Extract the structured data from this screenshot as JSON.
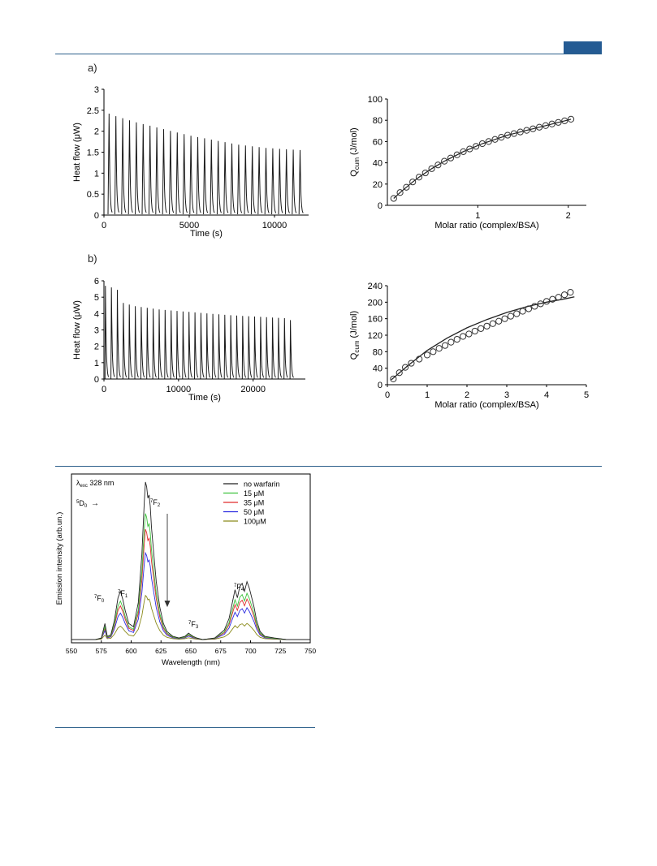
{
  "header": {
    "accent_color": "#245b93",
    "rule_color": "#2c5f8a"
  },
  "panel_labels": {
    "a": "a)",
    "b": "b)"
  },
  "chart_data": [
    {
      "id": "a-heatflow",
      "type": "line",
      "ylabel": "Heat flow (μW)",
      "xlabel": "Time (s)",
      "xlim": [
        0,
        12000
      ],
      "ylim": [
        0,
        3
      ],
      "xticks": [
        0,
        5000,
        10000
      ],
      "yticks": [
        0,
        0.5,
        1,
        1.5,
        2,
        2.5,
        3
      ],
      "peak_times": [
        300,
        700,
        1100,
        1500,
        1900,
        2300,
        2700,
        3100,
        3500,
        3900,
        4300,
        4700,
        5100,
        5500,
        5900,
        6300,
        6700,
        7100,
        7500,
        7900,
        8300,
        8700,
        9100,
        9500,
        9900,
        10300,
        10700,
        11100,
        11500
      ],
      "peak_values": [
        2.42,
        2.36,
        2.31,
        2.26,
        2.21,
        2.17,
        2.13,
        2.09,
        2.05,
        2.01,
        1.97,
        1.93,
        1.89,
        1.86,
        1.83,
        1.8,
        1.77,
        1.74,
        1.71,
        1.68,
        1.66,
        1.64,
        1.62,
        1.6,
        1.59,
        1.58,
        1.57,
        1.56,
        1.55
      ]
    },
    {
      "id": "a-qcum",
      "type": "scatter",
      "ylabel": "Q",
      "ylabel_sub": "cum",
      "ylabel_unit": " (J/mol)",
      "xlabel": "Molar ratio (complex/BSA)",
      "xlim": [
        0,
        2.2
      ],
      "ylim": [
        0,
        100
      ],
      "xticks": [
        1,
        2
      ],
      "yticks": [
        0,
        20,
        40,
        60,
        80,
        100
      ],
      "x": [
        0.07,
        0.14,
        0.21,
        0.28,
        0.35,
        0.42,
        0.49,
        0.56,
        0.63,
        0.7,
        0.77,
        0.84,
        0.91,
        0.98,
        1.05,
        1.12,
        1.19,
        1.26,
        1.33,
        1.4,
        1.47,
        1.54,
        1.61,
        1.68,
        1.75,
        1.82,
        1.89,
        1.96,
        2.03
      ],
      "y": [
        6.5,
        12,
        17,
        22,
        26.5,
        30.5,
        34.5,
        38,
        41.5,
        44.5,
        47.5,
        50.5,
        53,
        55.5,
        58,
        60,
        62,
        64,
        66,
        67.5,
        69,
        70.5,
        72,
        73.5,
        75,
        76.5,
        78,
        79.5,
        81
      ],
      "fit": "line"
    },
    {
      "id": "b-heatflow",
      "type": "line",
      "ylabel": "Heat flow (μW)",
      "xlabel": "Time (s)",
      "xlim": [
        0,
        27000
      ],
      "ylim": [
        0,
        6
      ],
      "xticks": [
        0,
        10000,
        20000
      ],
      "yticks": [
        0,
        1,
        2,
        3,
        4,
        5,
        6
      ],
      "peak_times": [
        200,
        1000,
        1800,
        2600,
        3400,
        4200,
        5000,
        5800,
        6600,
        7400,
        8200,
        9000,
        9800,
        10600,
        11400,
        12200,
        13000,
        13800,
        14600,
        15400,
        16200,
        17000,
        17800,
        18600,
        19400,
        20200,
        21000,
        21800,
        22600,
        23400,
        24200,
        25000
      ],
      "peak_values": [
        5.7,
        5.6,
        5.45,
        4.65,
        4.55,
        4.45,
        4.4,
        4.35,
        4.3,
        4.25,
        4.22,
        4.19,
        4.16,
        4.13,
        4.1,
        4.07,
        4.04,
        4.01,
        3.98,
        3.95,
        3.92,
        3.9,
        3.88,
        3.86,
        3.84,
        3.82,
        3.8,
        3.78,
        3.76,
        3.74,
        3.72,
        3.6
      ]
    },
    {
      "id": "b-qcum",
      "type": "scatter",
      "ylabel": "Q",
      "ylabel_sub": "cum",
      "ylabel_unit": " (J/mol)",
      "xlabel": "Molar ratio (complex/BSA)",
      "xlim": [
        0,
        5
      ],
      "ylim": [
        0,
        240
      ],
      "xticks": [
        0,
        1,
        2,
        3,
        4,
        5
      ],
      "yticks": [
        0,
        40,
        80,
        120,
        160,
        200,
        240
      ],
      "x": [
        0.15,
        0.3,
        0.45,
        0.6,
        0.8,
        1.0,
        1.15,
        1.3,
        1.45,
        1.6,
        1.75,
        1.9,
        2.05,
        2.2,
        2.35,
        2.5,
        2.65,
        2.8,
        2.95,
        3.1,
        3.25,
        3.4,
        3.55,
        3.7,
        3.85,
        4.0,
        4.15,
        4.3,
        4.45,
        4.6
      ],
      "y": [
        14,
        29,
        42,
        52,
        62,
        72,
        80,
        88,
        95,
        103,
        110,
        117,
        123,
        130,
        136,
        142,
        148,
        154,
        160,
        166,
        172,
        178,
        184,
        190,
        196,
        202,
        207,
        212,
        218,
        224
      ],
      "fit_x": [
        0.1,
        0.5,
        1,
        1.5,
        2,
        2.5,
        3,
        3.5,
        4,
        4.5,
        4.7
      ],
      "fit_y": [
        12,
        45,
        83,
        113,
        138,
        158,
        175,
        189,
        200,
        209,
        213
      ]
    },
    {
      "id": "emission",
      "type": "line",
      "ylabel": "Emission intensity (arb.un.)",
      "xlabel": "Wavelength (nm)",
      "xlim": [
        550,
        750
      ],
      "ylim": [
        0,
        1.05
      ],
      "xticks": [
        550,
        575,
        600,
        625,
        650,
        675,
        700,
        725,
        750
      ],
      "annotation_excitation": "λ",
      "annotation_excitation_sub": "exc",
      "annotation_excitation_rest": " 328 nm",
      "annotation_d0": "5",
      "annotation_d0_main": "D",
      "annotation_d0_sub": "0",
      "arrow_symbol": "→",
      "transitions": [
        {
          "sup": "7",
          "main": "F",
          "sub": "0"
        },
        {
          "sup": "7",
          "main": "F",
          "sub": "1"
        },
        {
          "sup": "7",
          "main": "F",
          "sub": "2"
        },
        {
          "sup": "7",
          "main": "F",
          "sub": "3"
        },
        {
          "sup": "7",
          "main": "F",
          "sub": "4"
        }
      ],
      "series": [
        {
          "name": "no warfarin",
          "color": "#222222",
          "scale": 1.0
        },
        {
          "name": "15 μM",
          "color": "#3cc23c",
          "scale": 0.8
        },
        {
          "name": "35 μM",
          "color": "#e02b2b",
          "scale": 0.7
        },
        {
          "name": "50 μM",
          "color": "#2a2ae0",
          "scale": 0.55
        },
        {
          "name": "100μM",
          "color": "#8a8a1a",
          "scale": 0.28
        }
      ],
      "base_spectrum": {
        "wavelengths": [
          550,
          570,
          575,
          578,
          580,
          583,
          586,
          589,
          591,
          593,
          595,
          598,
          602,
          606,
          609,
          611,
          612,
          613,
          614,
          615,
          616,
          617,
          619,
          621,
          624,
          627,
          630,
          635,
          640,
          645,
          648,
          650,
          652,
          655,
          660,
          670,
          678,
          682,
          685,
          687,
          689,
          691,
          693,
          695,
          697,
          699,
          701,
          703,
          705,
          708,
          712,
          720,
          730,
          740,
          750
        ],
        "intensity": [
          0.02,
          0.02,
          0.03,
          0.12,
          0.04,
          0.05,
          0.14,
          0.28,
          0.32,
          0.27,
          0.2,
          0.12,
          0.1,
          0.25,
          0.55,
          0.88,
          1.0,
          0.97,
          0.9,
          0.92,
          0.85,
          0.72,
          0.55,
          0.38,
          0.22,
          0.12,
          0.07,
          0.04,
          0.03,
          0.04,
          0.06,
          0.05,
          0.04,
          0.03,
          0.02,
          0.03,
          0.08,
          0.15,
          0.26,
          0.33,
          0.28,
          0.35,
          0.37,
          0.32,
          0.38,
          0.34,
          0.28,
          0.22,
          0.14,
          0.07,
          0.04,
          0.03,
          0.02,
          0.02,
          0.02
        ]
      }
    }
  ]
}
